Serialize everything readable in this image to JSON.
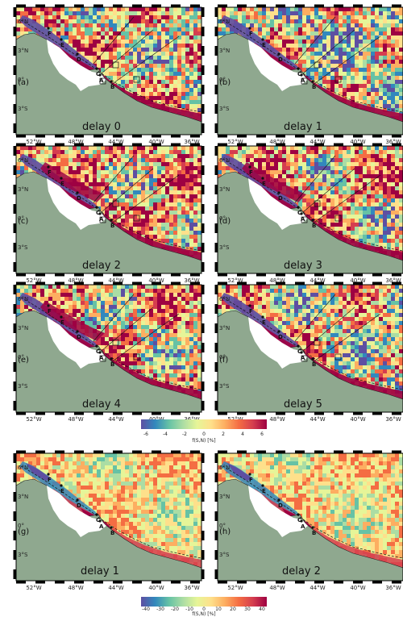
{
  "colors": {
    "land": "#8fa88f",
    "ocean_white": "#ffffff",
    "scale": [
      "#5e4fa2",
      "#3288bd",
      "#66c2a5",
      "#abdda4",
      "#e6f598",
      "#fee08b",
      "#fdae61",
      "#f46d43",
      "#d53e4f",
      "#9e0142"
    ]
  },
  "axes": {
    "lat_ticks": [
      "6°N",
      "3°N",
      "0°",
      "3°S"
    ],
    "lon_ticks": [
      "52°W",
      "48°W",
      "44°W",
      "40°W",
      "36°W"
    ]
  },
  "points": [
    "F",
    "E",
    "D",
    "C",
    "B",
    "A"
  ],
  "panels_top": [
    {
      "label": "(a)",
      "delay": "delay 0"
    },
    {
      "label": "(b)",
      "delay": "delay 1"
    },
    {
      "label": "(c)",
      "delay": "delay 2"
    },
    {
      "label": "(d)",
      "delay": "delay 3"
    },
    {
      "label": "(e)",
      "delay": "delay 4"
    },
    {
      "label": "(f)",
      "delay": "delay 5"
    }
  ],
  "panels_bottom": [
    {
      "label": "(g)",
      "delay": "delay 1"
    },
    {
      "label": "(h)",
      "delay": "delay 2"
    }
  ],
  "colorbar_top": {
    "ticks": [
      "-6",
      "-4",
      "-2",
      "0",
      "2",
      "4",
      "6"
    ],
    "label": "f(S,N) [%]"
  },
  "colorbar_bottom": {
    "ticks": [
      "-40",
      "-30",
      "-20",
      "-10",
      "0",
      "10",
      "20",
      "30",
      "40"
    ],
    "label": "f(S,N) [%]"
  }
}
